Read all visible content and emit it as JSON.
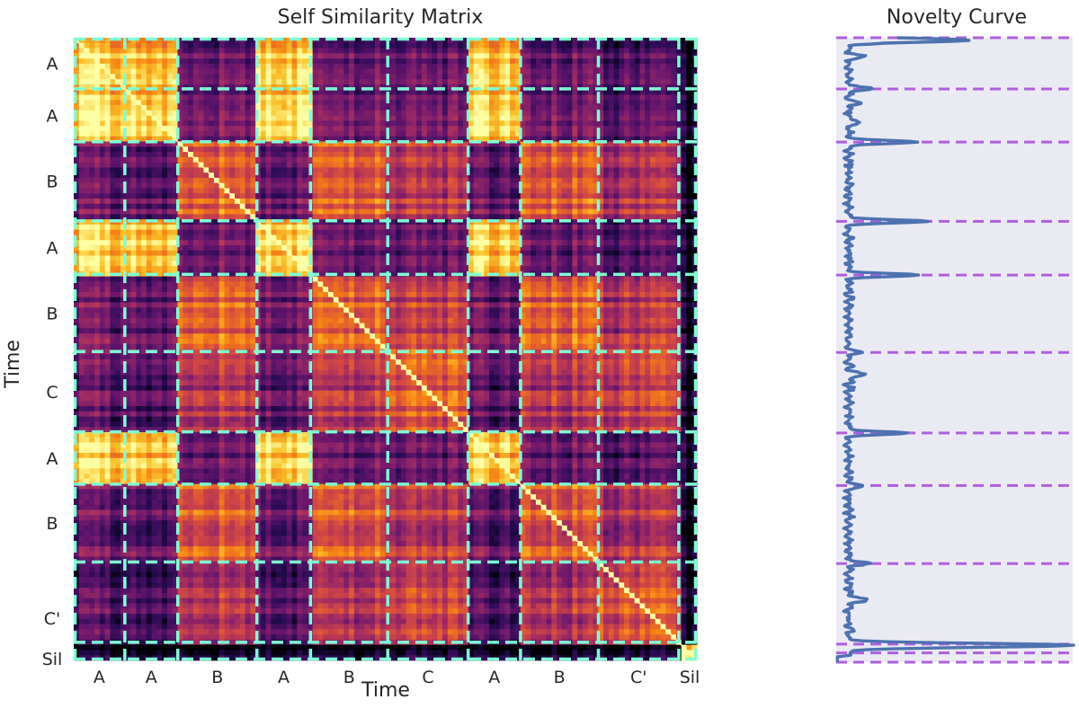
{
  "chart_data": [
    {
      "type": "heatmap",
      "title": "Self Similarity Matrix",
      "xlabel": "Time",
      "ylabel": "Time",
      "segments": [
        {
          "label": "A",
          "start": 0.0,
          "end": 0.082
        },
        {
          "label": "A",
          "start": 0.082,
          "end": 0.167
        },
        {
          "label": "B",
          "start": 0.167,
          "end": 0.294
        },
        {
          "label": "A",
          "start": 0.294,
          "end": 0.38
        },
        {
          "label": "B",
          "start": 0.38,
          "end": 0.504
        },
        {
          "label": "C",
          "start": 0.504,
          "end": 0.633
        },
        {
          "label": "A",
          "start": 0.633,
          "end": 0.717
        },
        {
          "label": "B",
          "start": 0.717,
          "end": 0.842
        },
        {
          "label": "C'",
          "start": 0.842,
          "end": 0.971
        },
        {
          "label": "Sil",
          "start": 0.971,
          "end": 1.0
        }
      ],
      "segment_similarity": {
        "A-A": 0.88,
        "B-B": 0.66,
        "C-C": 0.6,
        "C'-C'": 0.58,
        "Sil-Sil": 0.95,
        "A-B": 0.3,
        "A-C": 0.26,
        "A-C'": 0.22,
        "B-C": 0.5,
        "B-C'": 0.48,
        "C-C'": 0.52,
        "Sil-other": 0.05
      },
      "colormap": "inferno",
      "boundary_color": "#7fffd4"
    },
    {
      "type": "line",
      "title": "Novelty Curve",
      "orientation": "vertical",
      "xlim": [
        0,
        1
      ],
      "boundaries": [
        0.0,
        0.082,
        0.167,
        0.294,
        0.38,
        0.504,
        0.633,
        0.717,
        0.842,
        0.971,
        0.985
      ],
      "peaks": [
        {
          "t": 0.004,
          "v": 0.6
        },
        {
          "t": 0.082,
          "v": 0.14
        },
        {
          "t": 0.167,
          "v": 0.33
        },
        {
          "t": 0.294,
          "v": 0.37
        },
        {
          "t": 0.38,
          "v": 0.33
        },
        {
          "t": 0.504,
          "v": 0.08
        },
        {
          "t": 0.633,
          "v": 0.27
        },
        {
          "t": 0.717,
          "v": 0.09
        },
        {
          "t": 0.842,
          "v": 0.11
        },
        {
          "t": 0.973,
          "v": 1.0
        }
      ],
      "baseline": 0.03,
      "line_color": "#4c72b0",
      "boundary_color": "#b05ee0",
      "background_color": "#eaeaf2"
    }
  ]
}
